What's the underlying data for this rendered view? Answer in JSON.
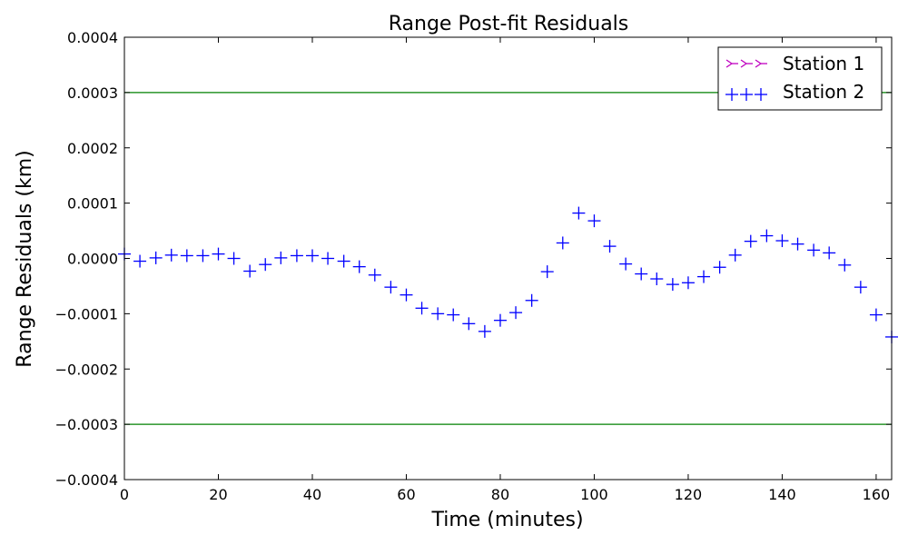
{
  "chart_data": {
    "type": "scatter",
    "title": "Range Post-fit Residuals",
    "xlabel": "Time (minutes)",
    "ylabel": "Range Residuals (km)",
    "xlim": [
      0,
      163.3
    ],
    "ylim": [
      -0.0004,
      0.0004
    ],
    "xticks": [
      0,
      20,
      40,
      60,
      80,
      100,
      120,
      140,
      160
    ],
    "xtick_labels": [
      "0",
      "20",
      "40",
      "60",
      "80",
      "100",
      "120",
      "140",
      "160"
    ],
    "yticks": [
      0.0004,
      0.0003,
      0.0002,
      0.0001,
      0.0,
      -0.0001,
      -0.0002,
      -0.0003,
      -0.0004
    ],
    "ytick_labels": [
      "0.0004",
      "0.0003",
      "0.0002",
      "0.0001",
      "0.0000",
      "−0.0001",
      "−0.0002",
      "−0.0003",
      "−0.0004"
    ],
    "grid": false,
    "legend_position": "top-right",
    "reference_lines": [
      {
        "y": 0.0003,
        "color": "#008000"
      },
      {
        "y": -0.0003,
        "color": "#008000"
      }
    ],
    "series": [
      {
        "name": "Station 1",
        "marker": "tri",
        "color": "#bf00bf",
        "x": [],
        "y": []
      },
      {
        "name": "Station 2",
        "marker": "plus",
        "color": "#0000ff",
        "x": [
          0,
          3.3,
          6.7,
          10,
          13.3,
          16.7,
          20,
          23.3,
          26.7,
          30,
          33.3,
          36.7,
          40,
          43.3,
          46.7,
          50,
          53.3,
          56.7,
          60,
          63.3,
          66.7,
          70,
          73.3,
          76.7,
          80,
          83.3,
          86.7,
          90,
          93.3,
          96.7,
          100,
          103.3,
          106.7,
          110,
          113.3,
          116.7,
          120,
          123.3,
          126.7,
          130,
          133.3,
          136.7,
          140,
          143.3,
          146.7,
          150,
          153.3,
          156.7,
          160,
          163.3
        ],
        "y": [
          8e-06,
          -5e-06,
          1e-06,
          6e-06,
          5e-06,
          5e-06,
          8e-06,
          0.0,
          -2.3e-05,
          -1.1e-05,
          1e-06,
          5e-06,
          5e-06,
          -0.0,
          -5e-06,
          -1.5e-05,
          -3e-05,
          -5.2e-05,
          -6.6e-05,
          -9e-05,
          -0.0001,
          -0.000102,
          -0.000118,
          -0.000132,
          -0.000112,
          -9.8e-05,
          -7.6e-05,
          -2.4e-05,
          2.8e-05,
          8.2e-05,
          6.8e-05,
          2.2e-05,
          -1e-05,
          -2.8e-05,
          -3.7e-05,
          -4.7e-05,
          -4.4e-05,
          -3.3e-05,
          -1.6e-05,
          6e-06,
          3.1e-05,
          4.1e-05,
          3.2e-05,
          2.6e-05,
          1.5e-05,
          1e-05,
          -1.2e-05,
          -5.2e-05,
          -0.000102,
          -0.000142
        ]
      }
    ]
  }
}
